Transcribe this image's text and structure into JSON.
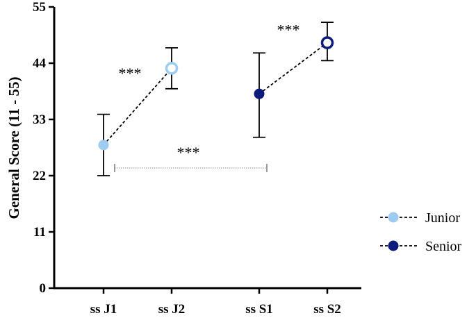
{
  "chart_data": {
    "type": "scatter",
    "title": "",
    "xlabel": "",
    "ylabel": "General Score (11 - 55)",
    "ylim": [
      0,
      55
    ],
    "yticks": [
      0,
      11,
      22,
      33,
      44,
      55
    ],
    "grid": false,
    "legend_position": "right",
    "categories": [
      "ss J1",
      "ss J2",
      "ss S1",
      "ss S2"
    ],
    "series": [
      {
        "name": "Junior",
        "color": "#9ecbf0",
        "points": [
          {
            "x": "ss J1",
            "y": 28.0,
            "err_low": 22.0,
            "err_high": 34.0,
            "filled": true
          },
          {
            "x": "ss J2",
            "y": 43.0,
            "err_low": 39.0,
            "err_high": 47.0,
            "filled": false
          }
        ]
      },
      {
        "name": "Senior",
        "color": "#0d1b7d",
        "points": [
          {
            "x": "ss S1",
            "y": 38.0,
            "err_low": 29.5,
            "err_high": 46.0,
            "filled": true
          },
          {
            "x": "ss S2",
            "y": 48.0,
            "err_low": 44.5,
            "err_high": 52.0,
            "filled": false
          }
        ]
      }
    ],
    "annotations": [
      {
        "text": "***",
        "between": [
          "ss J1",
          "ss J2"
        ]
      },
      {
        "text": "***",
        "between": [
          "ss S1",
          "ss S2"
        ]
      },
      {
        "text": "***",
        "between": [
          "ss J1",
          "ss S1"
        ]
      }
    ]
  }
}
